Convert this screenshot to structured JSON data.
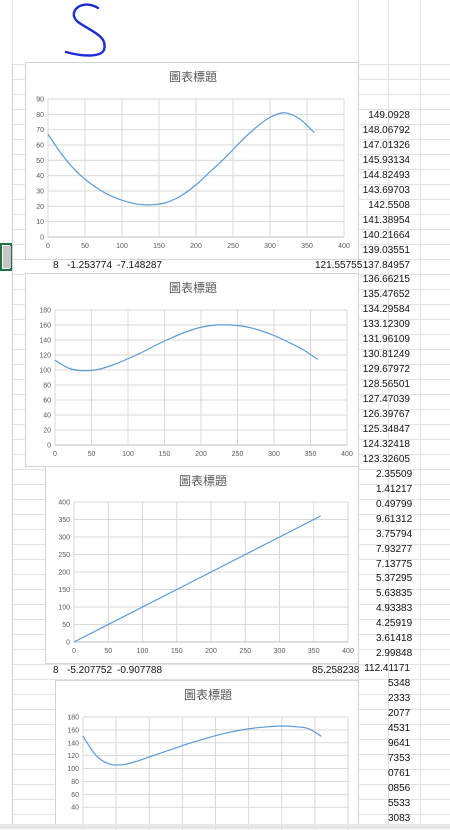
{
  "chart_data": [
    {
      "type": "line",
      "title": "圖表標題",
      "xlim": [
        0,
        400
      ],
      "ylim": [
        0,
        90
      ],
      "x_ticks": [
        0,
        50,
        100,
        150,
        200,
        250,
        300,
        350,
        400
      ],
      "y_ticks": [
        0,
        10,
        20,
        30,
        40,
        50,
        60,
        70,
        80,
        90
      ],
      "grid": true,
      "x": [
        0,
        20,
        40,
        60,
        80,
        100,
        120,
        140,
        160,
        180,
        200,
        220,
        240,
        260,
        280,
        300,
        320,
        340,
        360
      ],
      "y": [
        67,
        53,
        42,
        34,
        28,
        24,
        21.5,
        21,
        22.5,
        27,
        34,
        43,
        52,
        62,
        71,
        78,
        81,
        77,
        68
      ]
    },
    {
      "type": "line",
      "title": "圖表標題",
      "xlim": [
        0,
        400
      ],
      "ylim": [
        0,
        180
      ],
      "x_ticks": [
        0,
        50,
        100,
        150,
        200,
        250,
        300,
        350,
        400
      ],
      "y_ticks": [
        0,
        20,
        40,
        60,
        80,
        100,
        120,
        140,
        160,
        180
      ],
      "grid": true,
      "x": [
        0,
        20,
        40,
        60,
        80,
        100,
        120,
        140,
        160,
        180,
        200,
        220,
        240,
        260,
        280,
        300,
        320,
        340,
        360
      ],
      "y": [
        113,
        102,
        99,
        101,
        107,
        115,
        124,
        134,
        143,
        151,
        157,
        160,
        160,
        158,
        153,
        146,
        137,
        127,
        114
      ]
    },
    {
      "type": "line",
      "title": "圖表標題",
      "xlim": [
        0,
        400
      ],
      "ylim": [
        0,
        400
      ],
      "x_ticks": [
        0,
        50,
        100,
        150,
        200,
        250,
        300,
        350,
        400
      ],
      "y_ticks": [
        0,
        50,
        100,
        150,
        200,
        250,
        300,
        350,
        400
      ],
      "grid": true,
      "x": [
        0,
        360
      ],
      "y": [
        0,
        360
      ]
    },
    {
      "type": "line",
      "title": "圖表標題",
      "xlim": [
        0,
        400
      ],
      "ylim": [
        0,
        180
      ],
      "x_ticks": [],
      "y_ticks": [
        40,
        60,
        80,
        100,
        120,
        140,
        160,
        180
      ],
      "grid": true,
      "x": [
        0,
        20,
        40,
        60,
        80,
        100,
        120,
        140,
        160,
        180,
        200,
        220,
        240,
        260,
        280,
        300,
        320,
        340,
        360
      ],
      "y": [
        150,
        120,
        107,
        106,
        111,
        118,
        125,
        132,
        139,
        145,
        151,
        156,
        160,
        163,
        165,
        166,
        165,
        162,
        150
      ]
    }
  ],
  "sheet": {
    "right_column": [
      "149.0928",
      "148.06792",
      "147.01326",
      "145.93134",
      "144.82493",
      "143.69703",
      "142.5508",
      "141.38954",
      "140.21664",
      "139.03551",
      "137.84957",
      "136.66215",
      "135.47652",
      "134.29584",
      "133.12309",
      "131.96109",
      "130.81249",
      "129.67972",
      "128.56501",
      "127.47039",
      "126.39767",
      "125.34847",
      "124.32418",
      "123.32605",
      "2.35509",
      "1.41217",
      "0.49799",
      "9.61312",
      "3.75794",
      "7.93277",
      "7.13775",
      "5.37295",
      "5.63835",
      "4.93383",
      "4.25919",
      "3.61418",
      "2.99848",
      "112.41171",
      "5348",
      "2333",
      "2077",
      "4531",
      "9641",
      "7353",
      "0761",
      "0856",
      "5533",
      "3083"
    ],
    "row_a": [
      "8",
      "-1.253774",
      "-7.148287",
      "121.55755"
    ],
    "row_b": [
      "8",
      "-5.207752",
      "-0.907788",
      "85.258238"
    ]
  },
  "colors": {
    "series": "#5b9bd5",
    "active_cell_border": "#217346",
    "ink": "#1f2bd6"
  },
  "icons": [
    "handwritten-s-mark"
  ]
}
